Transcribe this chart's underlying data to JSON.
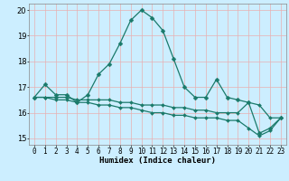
{
  "title": "",
  "xlabel": "Humidex (Indice chaleur)",
  "bg_color": "#cceeff",
  "grid_color": "#e8b0b0",
  "line_color": "#1a7a6a",
  "xlim": [
    -0.5,
    23.5
  ],
  "ylim": [
    14.75,
    20.25
  ],
  "xticks": [
    0,
    1,
    2,
    3,
    4,
    5,
    6,
    7,
    8,
    9,
    10,
    11,
    12,
    13,
    14,
    15,
    16,
    17,
    18,
    19,
    20,
    21,
    22,
    23
  ],
  "yticks": [
    15,
    16,
    17,
    18,
    19,
    20
  ],
  "line1_x": [
    0,
    1,
    2,
    3,
    4,
    5,
    6,
    7,
    8,
    9,
    10,
    11,
    12,
    13,
    14,
    15,
    16,
    17,
    18,
    19,
    20,
    21,
    22,
    23
  ],
  "line1_y": [
    16.6,
    17.1,
    16.7,
    16.7,
    16.4,
    16.7,
    17.5,
    17.9,
    18.7,
    19.6,
    20.0,
    19.7,
    19.2,
    18.1,
    17.0,
    16.6,
    16.6,
    17.3,
    16.6,
    16.5,
    16.4,
    15.2,
    15.4,
    15.8
  ],
  "line2_x": [
    0,
    1,
    2,
    3,
    4,
    5,
    6,
    7,
    8,
    9,
    10,
    11,
    12,
    13,
    14,
    15,
    16,
    17,
    18,
    19,
    20,
    21,
    22,
    23
  ],
  "line2_y": [
    16.6,
    16.6,
    16.6,
    16.6,
    16.5,
    16.5,
    16.5,
    16.5,
    16.4,
    16.4,
    16.3,
    16.3,
    16.3,
    16.2,
    16.2,
    16.1,
    16.1,
    16.0,
    16.0,
    16.0,
    16.4,
    16.3,
    15.8,
    15.8
  ],
  "line3_x": [
    0,
    1,
    2,
    3,
    4,
    5,
    6,
    7,
    8,
    9,
    10,
    11,
    12,
    13,
    14,
    15,
    16,
    17,
    18,
    19,
    20,
    21,
    22,
    23
  ],
  "line3_y": [
    16.6,
    16.6,
    16.5,
    16.5,
    16.4,
    16.4,
    16.3,
    16.3,
    16.2,
    16.2,
    16.1,
    16.0,
    16.0,
    15.9,
    15.9,
    15.8,
    15.8,
    15.8,
    15.7,
    15.7,
    15.4,
    15.1,
    15.3,
    15.8
  ],
  "tick_fontsize": 5.5,
  "xlabel_fontsize": 6.5,
  "marker_size": 2.5,
  "line_width": 0.9
}
